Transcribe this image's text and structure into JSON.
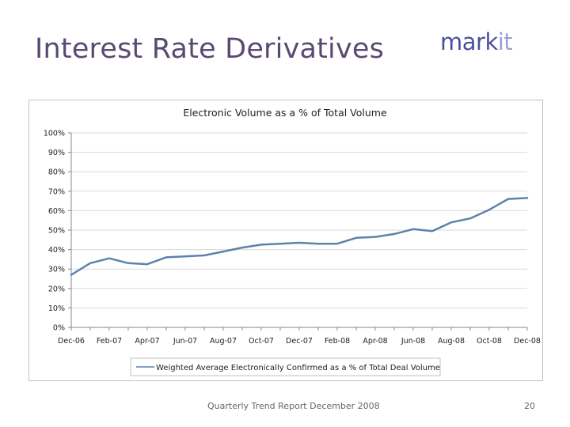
{
  "slide": {
    "title": "Interest Rate Derivatives",
    "logo_main": "mark",
    "logo_accent": "it",
    "footer": "Quarterly Trend Report December 2008",
    "page_number": "20"
  },
  "colors": {
    "title": "#5a4a73",
    "logo": "#4b4f9c",
    "line": "#5d82ad"
  },
  "chart_data": {
    "type": "line",
    "title": "Electronic Volume as a % of Total Volume",
    "xlabel": "",
    "ylabel": "",
    "ylim": [
      0,
      100
    ],
    "y_ticks": [
      "0%",
      "10%",
      "20%",
      "30%",
      "40%",
      "50%",
      "60%",
      "70%",
      "80%",
      "90%",
      "100%"
    ],
    "x_tick_labels": [
      "Dec-06",
      "Feb-07",
      "Apr-07",
      "Jun-07",
      "Aug-07",
      "Oct-07",
      "Dec-07",
      "Feb-08",
      "Apr-08",
      "Jun-08",
      "Aug-08",
      "Oct-08",
      "Dec-08"
    ],
    "grid": true,
    "legend_position": "bottom",
    "categories": [
      "Dec-06",
      "Jan-07",
      "Feb-07",
      "Mar-07",
      "Apr-07",
      "May-07",
      "Jun-07",
      "Jul-07",
      "Aug-07",
      "Sep-07",
      "Oct-07",
      "Nov-07",
      "Dec-07",
      "Jan-08",
      "Feb-08",
      "Mar-08",
      "Apr-08",
      "May-08",
      "Jun-08",
      "Jul-08",
      "Aug-08",
      "Sep-08",
      "Oct-08",
      "Nov-08",
      "Dec-08"
    ],
    "series": [
      {
        "name": "Weighted Average Electronically Confirmed as a % of Total Deal Volume",
        "values": [
          27,
          33,
          35.5,
          33,
          32.5,
          36,
          36.5,
          37,
          39,
          41,
          42.5,
          43,
          43.5,
          43,
          43,
          46,
          46.5,
          48,
          50.5,
          49.5,
          54,
          56,
          60.5,
          66,
          66.5
        ]
      }
    ]
  }
}
